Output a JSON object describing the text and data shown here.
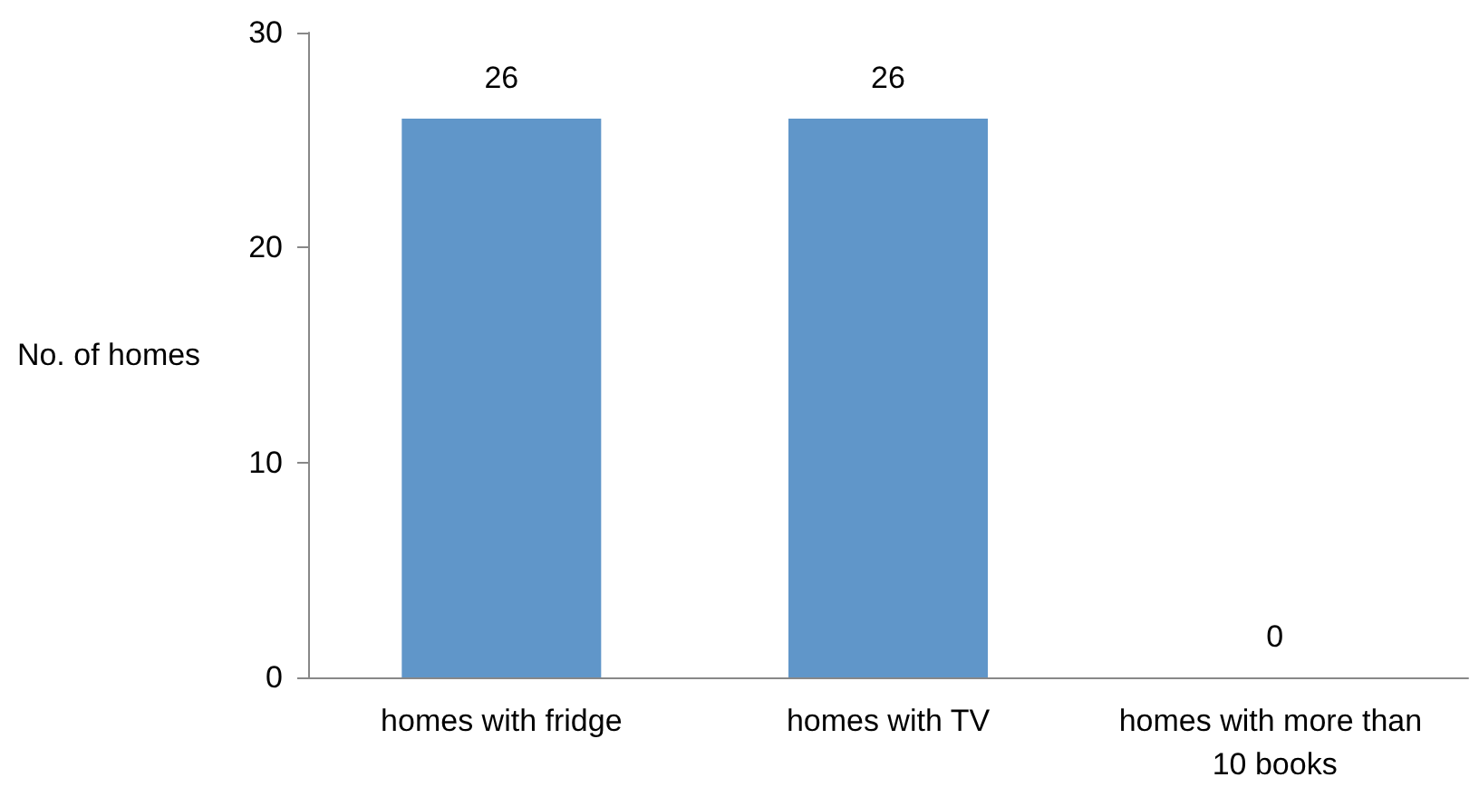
{
  "chart_data": {
    "type": "bar",
    "ylabel": "No. of homes",
    "categories": [
      "homes with fridge",
      "homes with TV",
      "homes with more than 10 books"
    ],
    "values": [
      26,
      26,
      0
    ],
    "color": "#6096c9",
    "ylim": [
      0,
      30
    ],
    "yticks": [
      0,
      10,
      20,
      30
    ],
    "grid": false,
    "data_labels": true
  }
}
